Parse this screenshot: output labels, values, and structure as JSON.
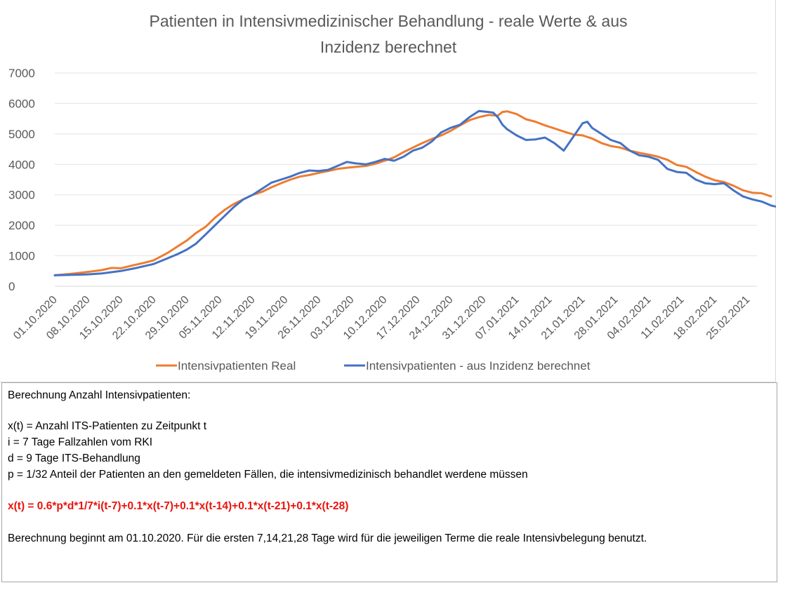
{
  "chart_data": {
    "type": "line",
    "title": "Patienten in Intensivmedizinischer  Behandlung - reale Werte & aus Inzidenz berechnet",
    "title_lines": [
      "Patienten in Intensivmedizinischer  Behandlung - reale Werte & aus",
      "Inzidenz berechnet"
    ],
    "xlabel": "",
    "ylabel": "",
    "ylim": [
      0,
      7000
    ],
    "yticks": [
      0,
      1000,
      2000,
      3000,
      4000,
      5000,
      6000,
      7000
    ],
    "grid": true,
    "legend_position": "bottom",
    "x_start": "01.10.2020",
    "x_end": "27.02.2021",
    "xtick_labels": [
      "01.10.2020",
      "08.10.2020",
      "15.10.2020",
      "22.10.2020",
      "29.10.2020",
      "05.11.2020",
      "12.11.2020",
      "19.11.2020",
      "26.11.2020",
      "03.12.2020",
      "10.12.2020",
      "17.12.2020",
      "24.12.2020",
      "31.12.2020",
      "07.01.2021",
      "14.01.2021",
      "21.01.2021",
      "28.01.2021",
      "04.02.2021",
      "11.02.2021",
      "18.02.2021",
      "25.02.2021"
    ],
    "series": [
      {
        "name": "Intensivpatienten Real",
        "color": "#ed7d31",
        "points": [
          [
            0,
            360
          ],
          [
            3,
            400
          ],
          [
            7,
            470
          ],
          [
            10,
            530
          ],
          [
            12,
            600
          ],
          [
            14,
            590
          ],
          [
            17,
            700
          ],
          [
            19,
            770
          ],
          [
            21,
            850
          ],
          [
            24,
            1100
          ],
          [
            26,
            1300
          ],
          [
            28,
            1500
          ],
          [
            30,
            1750
          ],
          [
            32,
            1950
          ],
          [
            34,
            2250
          ],
          [
            36,
            2500
          ],
          [
            38,
            2700
          ],
          [
            40,
            2850
          ],
          [
            42,
            3000
          ],
          [
            44,
            3100
          ],
          [
            46,
            3250
          ],
          [
            48,
            3380
          ],
          [
            50,
            3500
          ],
          [
            52,
            3600
          ],
          [
            54,
            3650
          ],
          [
            56,
            3720
          ],
          [
            58,
            3780
          ],
          [
            60,
            3850
          ],
          [
            62,
            3890
          ],
          [
            64,
            3920
          ],
          [
            66,
            3950
          ],
          [
            68,
            4020
          ],
          [
            70,
            4120
          ],
          [
            72,
            4230
          ],
          [
            74,
            4400
          ],
          [
            76,
            4550
          ],
          [
            78,
            4700
          ],
          [
            80,
            4830
          ],
          [
            82,
            4950
          ],
          [
            84,
            5100
          ],
          [
            86,
            5280
          ],
          [
            88,
            5450
          ],
          [
            90,
            5550
          ],
          [
            92,
            5620
          ],
          [
            94,
            5600
          ],
          [
            95,
            5720
          ],
          [
            96,
            5740
          ],
          [
            98,
            5650
          ],
          [
            100,
            5480
          ],
          [
            102,
            5400
          ],
          [
            104,
            5280
          ],
          [
            106,
            5180
          ],
          [
            108,
            5080
          ],
          [
            110,
            4980
          ],
          [
            112,
            4950
          ],
          [
            114,
            4850
          ],
          [
            116,
            4700
          ],
          [
            118,
            4600
          ],
          [
            120,
            4550
          ],
          [
            122,
            4450
          ],
          [
            124,
            4380
          ],
          [
            126,
            4320
          ],
          [
            128,
            4250
          ],
          [
            130,
            4150
          ],
          [
            132,
            3980
          ],
          [
            134,
            3920
          ],
          [
            136,
            3750
          ],
          [
            138,
            3600
          ],
          [
            140,
            3480
          ],
          [
            142,
            3420
          ],
          [
            144,
            3300
          ],
          [
            146,
            3150
          ],
          [
            148,
            3070
          ],
          [
            150,
            3050
          ],
          [
            152,
            2950
          ],
          [
            149,
            3060
          ],
          [
            150,
            3050
          ]
        ]
      },
      {
        "name": "Intensivpatienten - aus Inzidenz berechnet",
        "color": "#4472c4",
        "points": [
          [
            0,
            360
          ],
          [
            3,
            370
          ],
          [
            7,
            390
          ],
          [
            10,
            420
          ],
          [
            12,
            460
          ],
          [
            14,
            500
          ],
          [
            17,
            590
          ],
          [
            19,
            660
          ],
          [
            21,
            730
          ],
          [
            24,
            920
          ],
          [
            26,
            1050
          ],
          [
            28,
            1200
          ],
          [
            30,
            1400
          ],
          [
            32,
            1700
          ],
          [
            34,
            2000
          ],
          [
            36,
            2300
          ],
          [
            38,
            2600
          ],
          [
            40,
            2850
          ],
          [
            42,
            3000
          ],
          [
            44,
            3200
          ],
          [
            46,
            3400
          ],
          [
            48,
            3500
          ],
          [
            50,
            3600
          ],
          [
            52,
            3720
          ],
          [
            54,
            3800
          ],
          [
            56,
            3780
          ],
          [
            58,
            3820
          ],
          [
            60,
            3950
          ],
          [
            62,
            4080
          ],
          [
            64,
            4030
          ],
          [
            66,
            4000
          ],
          [
            68,
            4080
          ],
          [
            70,
            4180
          ],
          [
            72,
            4120
          ],
          [
            74,
            4250
          ],
          [
            76,
            4450
          ],
          [
            78,
            4550
          ],
          [
            80,
            4750
          ],
          [
            82,
            5050
          ],
          [
            84,
            5200
          ],
          [
            86,
            5300
          ],
          [
            88,
            5550
          ],
          [
            90,
            5750
          ],
          [
            92,
            5720
          ],
          [
            93,
            5700
          ],
          [
            94,
            5550
          ],
          [
            95,
            5300
          ],
          [
            96,
            5150
          ],
          [
            98,
            4950
          ],
          [
            100,
            4800
          ],
          [
            102,
            4820
          ],
          [
            104,
            4880
          ],
          [
            106,
            4700
          ],
          [
            108,
            4450
          ],
          [
            110,
            4900
          ],
          [
            112,
            5350
          ],
          [
            113,
            5400
          ],
          [
            114,
            5200
          ],
          [
            116,
            5000
          ],
          [
            118,
            4800
          ],
          [
            120,
            4700
          ],
          [
            122,
            4450
          ],
          [
            124,
            4300
          ],
          [
            126,
            4250
          ],
          [
            128,
            4150
          ],
          [
            130,
            3850
          ],
          [
            132,
            3750
          ],
          [
            134,
            3720
          ],
          [
            136,
            3500
          ],
          [
            138,
            3380
          ],
          [
            140,
            3350
          ],
          [
            142,
            3380
          ],
          [
            144,
            3150
          ],
          [
            146,
            2950
          ],
          [
            148,
            2850
          ],
          [
            150,
            2780
          ],
          [
            152,
            2650
          ],
          [
            154,
            2580
          ]
        ]
      }
    ]
  },
  "textbox": {
    "heading": "Berechnung Anzahl Intensivpatienten:",
    "def_x": "x(t) = Anzahl ITS-Patienten zu Zeitpunkt t",
    "def_i": "i = 7 Tage Fallzahlen vom RKI",
    "def_d": "d = 9 Tage  ITS-Behandlung",
    "def_p": "p = 1/32 Anteil der Patienten an den gemeldeten Fällen, die intensivmedizinisch behandlet werdene müssen",
    "formula": "x(t) = 0.6*p*d*1/7*i(t-7)+0.1*x(t-7)+0.1*x(t-14)+0.1*x(t-21)+0.1*x(t-28)",
    "note": "Berechnung beginnt am 01.10.2020. Für die ersten 7,14,21,28 Tage wird für die jeweiligen Terme die reale  Intensivbelegung benutzt."
  }
}
